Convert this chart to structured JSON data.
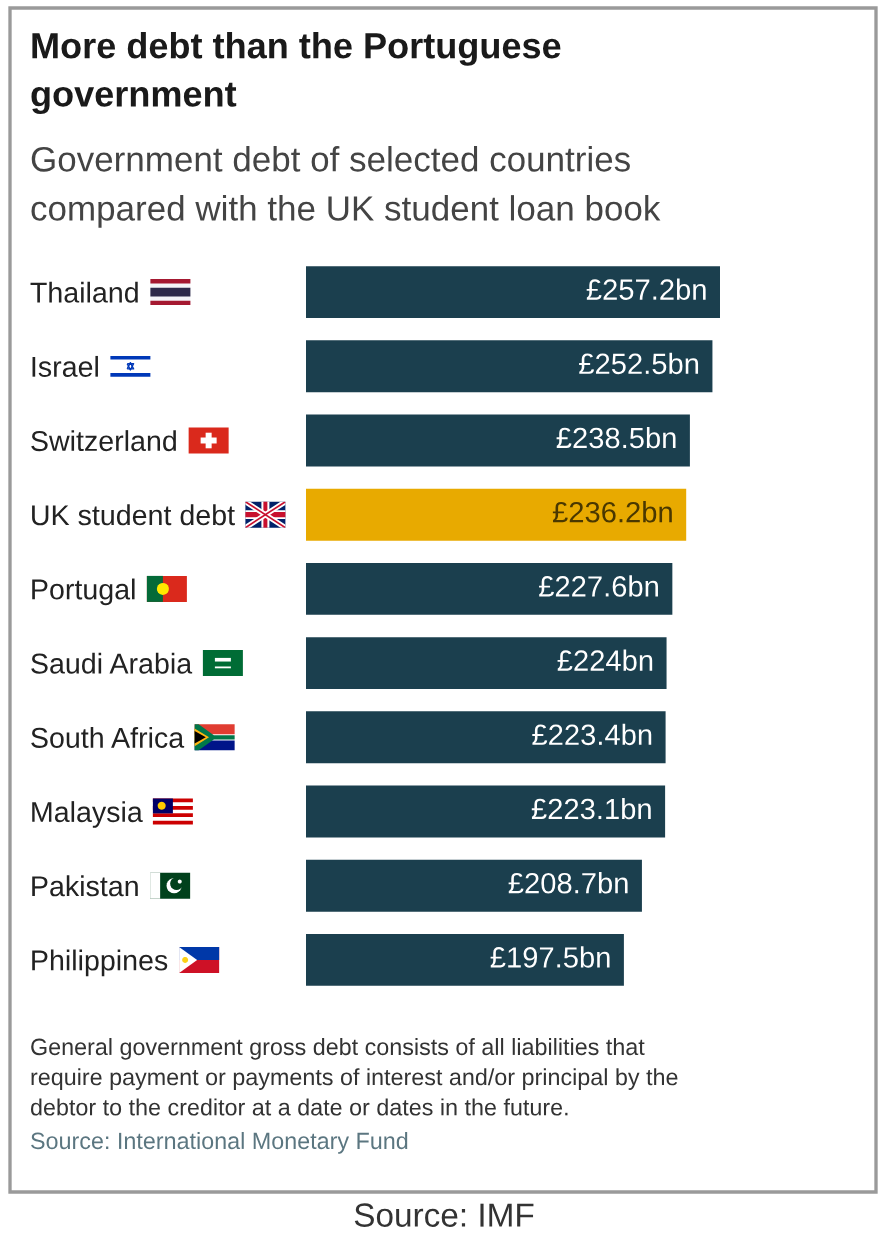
{
  "chart_data": {
    "type": "bar",
    "orientation": "horizontal",
    "title": "More debt than the Portuguese government",
    "subtitle": "Government debt of selected countries compared with the UK student loan book",
    "categories": [
      "Thailand",
      "Israel",
      "Switzerland",
      "UK student debt",
      "Portugal",
      "Saudi Arabia",
      "South Africa",
      "Malaysia",
      "Pakistan",
      "Philippines"
    ],
    "values": [
      257.2,
      252.5,
      238.5,
      236.2,
      227.6,
      224,
      223.4,
      223.1,
      208.7,
      197.5
    ],
    "colors": [
      "#1b3f4e",
      "#1b3f4e",
      "#1b3f4e",
      "#e8aa00",
      "#1b3f4e",
      "#1b3f4e",
      "#1b3f4e",
      "#1b3f4e",
      "#1b3f4e",
      "#1b3f4e"
    ],
    "value_labels": [
      "£257.2bn",
      "£252.5bn",
      "£238.5bn",
      "£236.2bn",
      "£227.6bn",
      "£224bn",
      "£223.4bn",
      "£223.1bn",
      "£208.7bn",
      "£197.5bn"
    ],
    "tick_labels": "y",
    "annotations": [
      "General government gross debt consists of all liabilities that require payment or payments of interest and/or principal by the debtor to the creditor at a date or dates in the future.",
      "Source: International Monetary Fund",
      "Source: IMF"
    ]
  }
}
